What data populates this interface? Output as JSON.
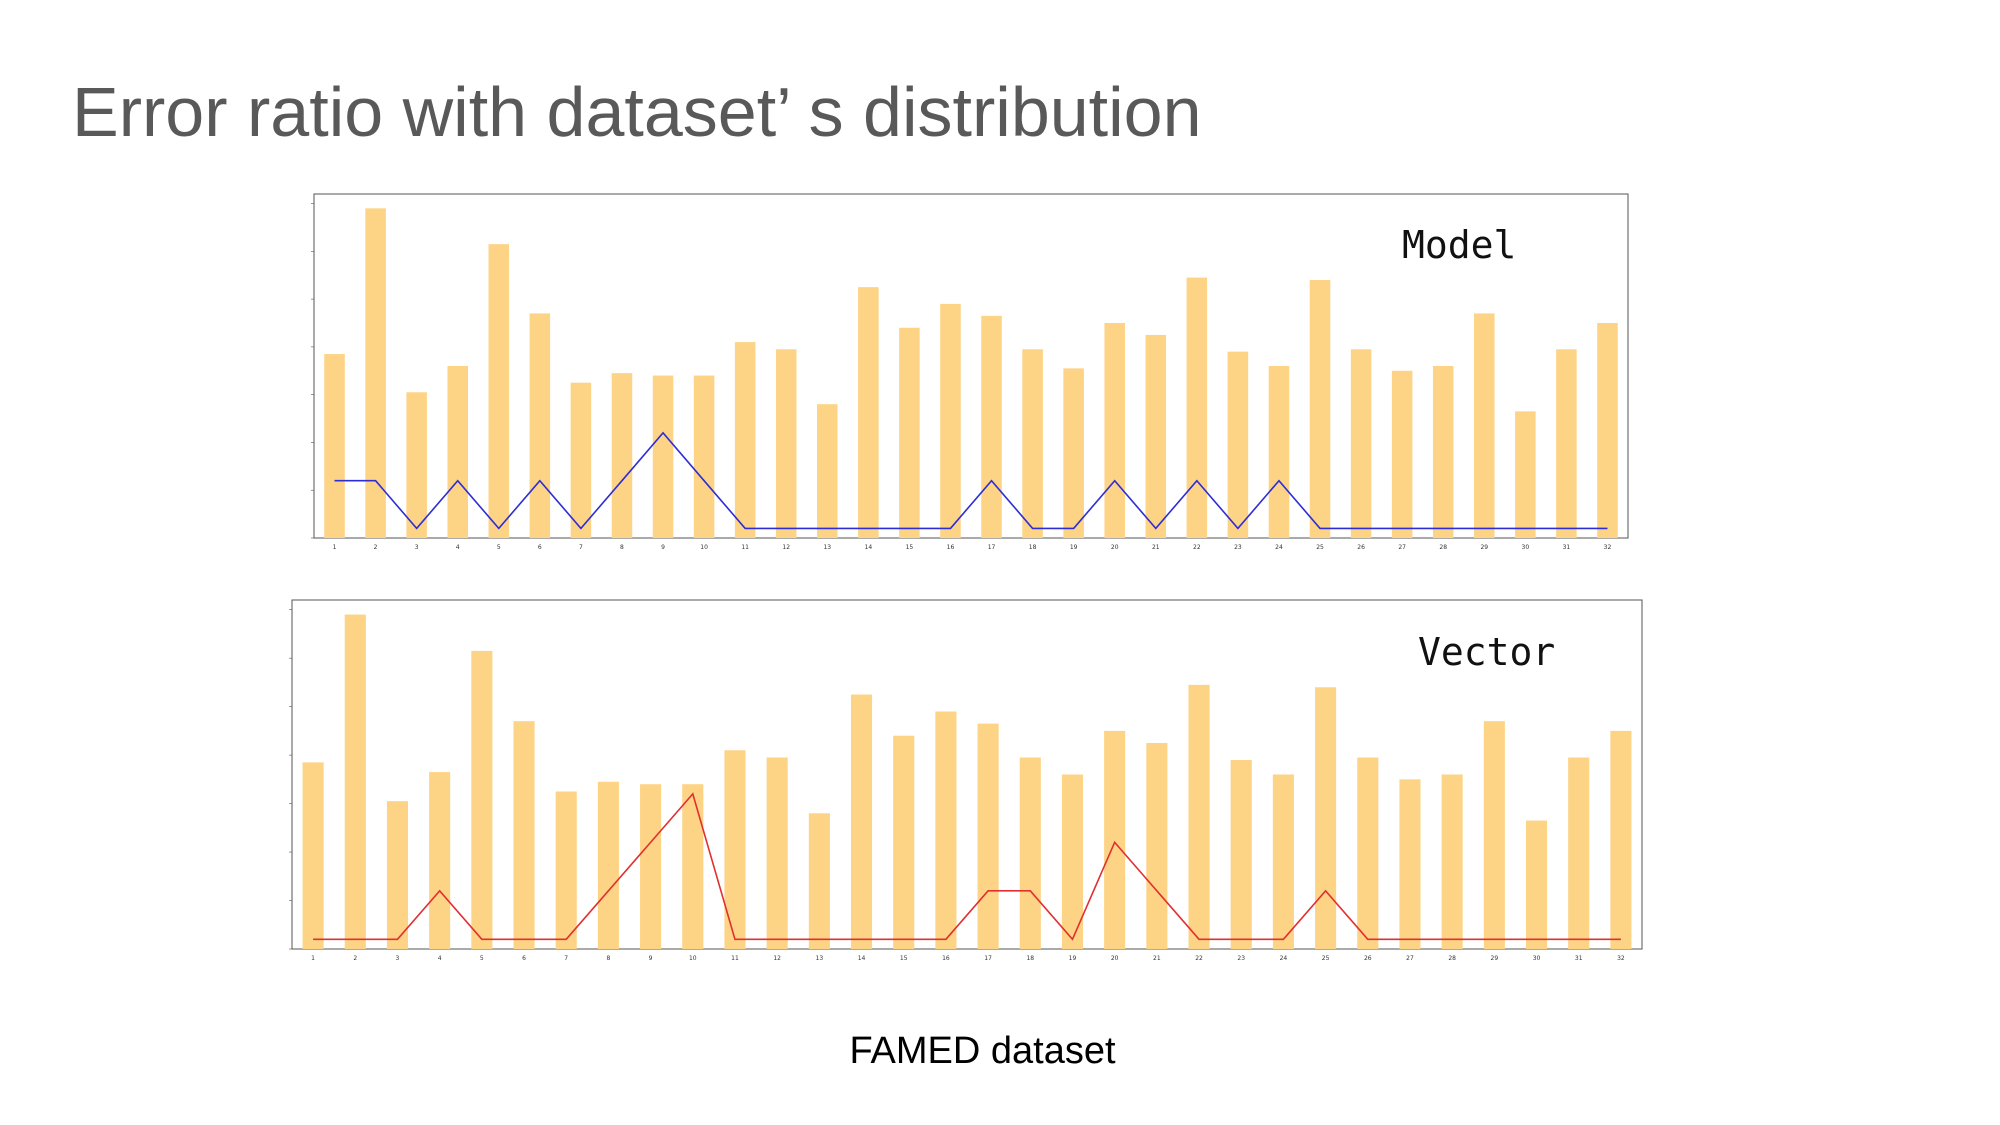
{
  "slide": {
    "title": "Error ratio with dataset’ s distribution",
    "caption": "FAMED dataset"
  },
  "colors": {
    "bar": "#fdd386",
    "model_line": "#2d2dd6",
    "vector_line": "#e03030",
    "frame": "#555555",
    "title": "#595959"
  },
  "chart_data": [
    {
      "type": "bar",
      "overlay": "line",
      "label": "Model",
      "grid": false,
      "ylim": [
        0,
        7.2
      ],
      "categories": [
        "1",
        "2",
        "3",
        "4",
        "5",
        "6",
        "7",
        "8",
        "9",
        "10",
        "11",
        "12",
        "13",
        "14",
        "15",
        "16",
        "17",
        "18",
        "19",
        "20",
        "21",
        "22",
        "23",
        "24",
        "25",
        "26",
        "27",
        "28",
        "29",
        "30",
        "31",
        "32"
      ],
      "bar_values": [
        3.85,
        6.9,
        3.05,
        3.6,
        6.15,
        4.7,
        3.25,
        3.45,
        3.4,
        3.4,
        4.1,
        3.95,
        2.8,
        5.25,
        4.4,
        4.9,
        4.65,
        3.95,
        3.55,
        4.5,
        4.25,
        5.45,
        3.9,
        3.6,
        5.4,
        3.95,
        3.5,
        3.6,
        4.7,
        2.65,
        3.95,
        4.5
      ],
      "line_values": [
        1.2,
        1.2,
        0.2,
        1.2,
        0.2,
        1.2,
        0.2,
        1.2,
        2.2,
        1.2,
        0.2,
        0.2,
        0.2,
        0.2,
        0.2,
        0.2,
        1.2,
        0.2,
        0.2,
        1.2,
        0.2,
        1.2,
        0.2,
        1.2,
        0.2,
        0.2,
        0.2,
        0.2,
        0.2,
        0.2,
        0.2,
        0.2
      ]
    },
    {
      "type": "bar",
      "overlay": "line",
      "label": "Vector",
      "grid": false,
      "ylim": [
        0,
        7.2
      ],
      "categories": [
        "1",
        "2",
        "3",
        "4",
        "5",
        "6",
        "7",
        "8",
        "9",
        "10",
        "11",
        "12",
        "13",
        "14",
        "15",
        "16",
        "17",
        "18",
        "19",
        "20",
        "21",
        "22",
        "23",
        "24",
        "25",
        "26",
        "27",
        "28",
        "29",
        "30",
        "31",
        "32"
      ],
      "bar_values": [
        3.85,
        6.9,
        3.05,
        3.65,
        6.15,
        4.7,
        3.25,
        3.45,
        3.4,
        3.4,
        4.1,
        3.95,
        2.8,
        5.25,
        4.4,
        4.9,
        4.65,
        3.95,
        3.6,
        4.5,
        4.25,
        5.45,
        3.9,
        3.6,
        5.4,
        3.95,
        3.5,
        3.6,
        4.7,
        2.65,
        3.95,
        4.5
      ],
      "line_values": [
        0.2,
        0.2,
        0.2,
        1.2,
        0.2,
        0.2,
        0.2,
        1.2,
        2.2,
        3.2,
        0.2,
        0.2,
        0.2,
        0.2,
        0.2,
        0.2,
        1.2,
        1.2,
        0.2,
        2.2,
        1.2,
        0.2,
        0.2,
        0.2,
        1.2,
        0.2,
        0.2,
        0.2,
        0.2,
        0.2,
        0.2,
        0.2
      ]
    }
  ]
}
